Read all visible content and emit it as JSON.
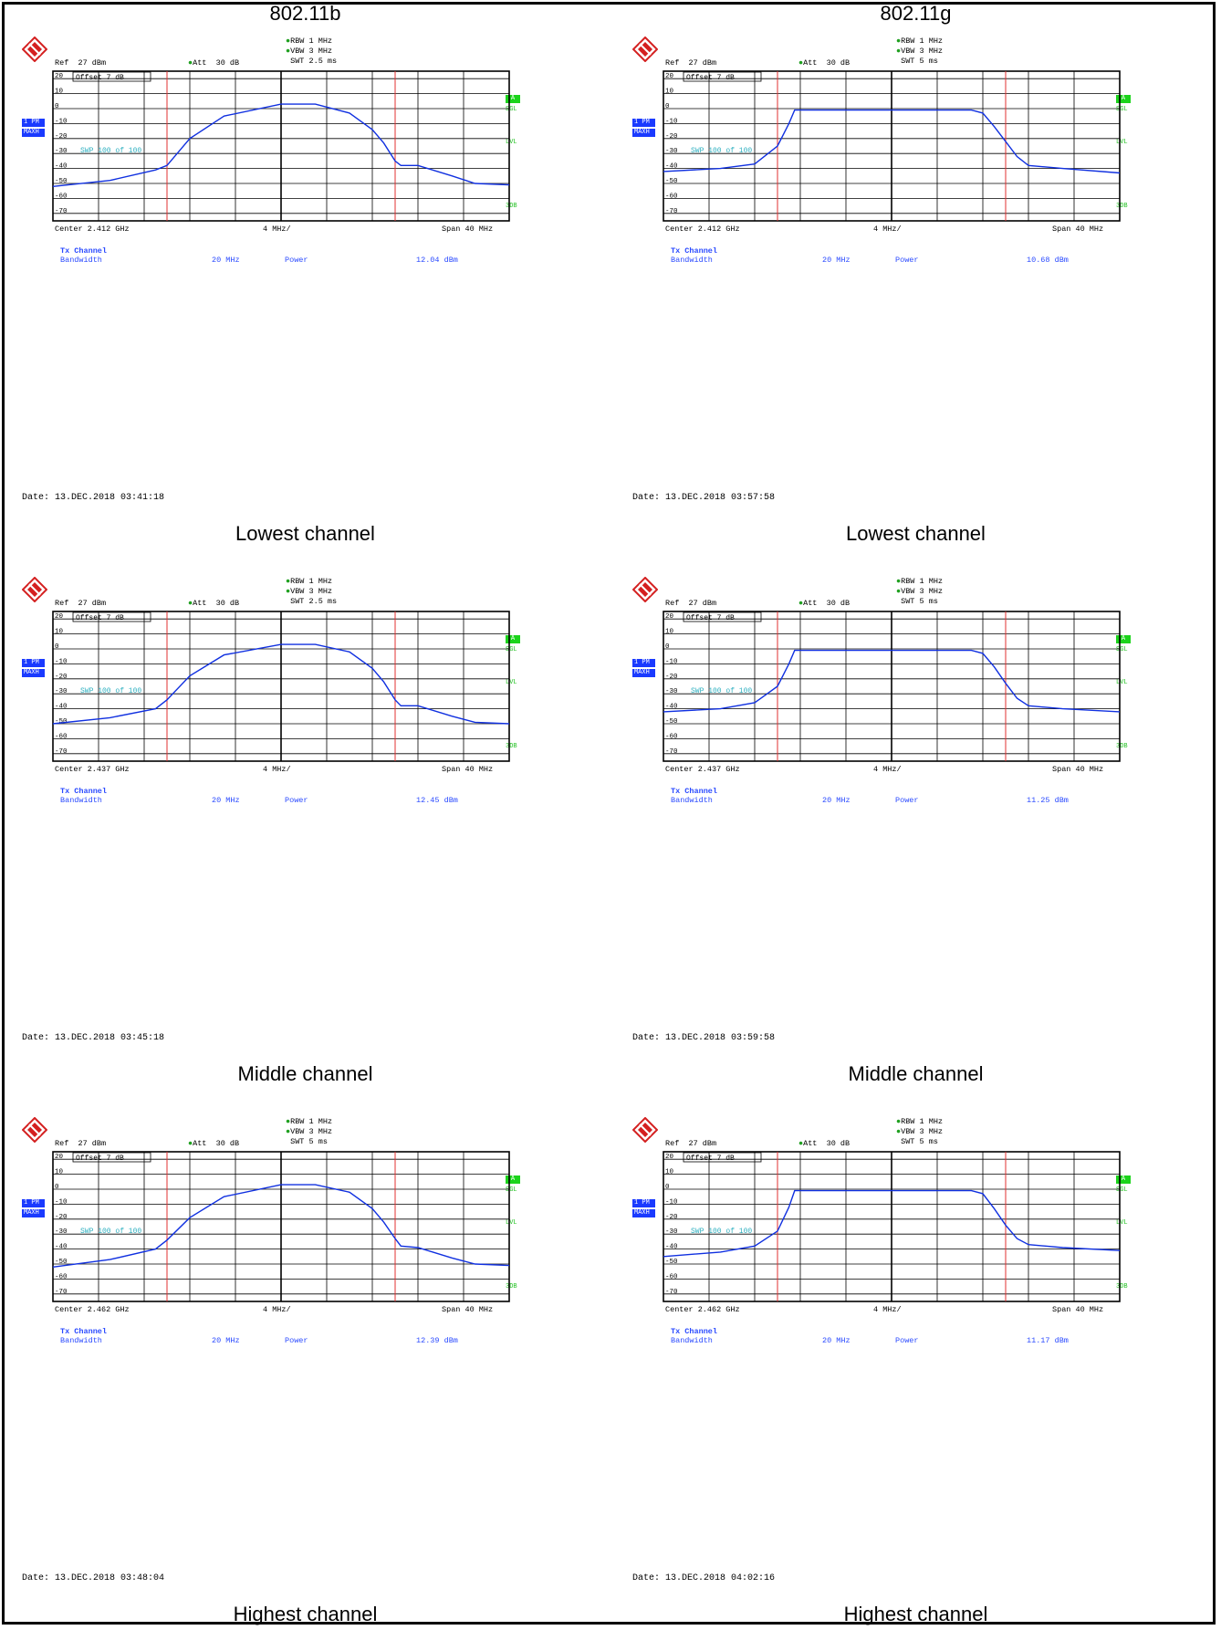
{
  "columns": [
    "802.11b",
    "802.11g"
  ],
  "header": {
    "ref": "Ref  27 dBm",
    "att": "Att  30 dB",
    "rbw": "RBW 1 MHz",
    "vbw": "VBW 3 MHz",
    "offset": "Offset  7 dB",
    "swp": "SWP  100 of  100",
    "y_ticks": [
      "20",
      "10",
      "0",
      "-10",
      "-20",
      "-30",
      "-40",
      "-50",
      "-60",
      "-70"
    ],
    "div": "4 MHz/",
    "span": "Span 40 MHz",
    "pm1": "1 PM",
    "maxh": "MAXH",
    "a": "A",
    "sgl": "SGL",
    "lvl": "LVL",
    "db": "3DB",
    "tx_channel": "Tx Channel",
    "bandwidth": "Bandwidth",
    "bw_value": "20 MHz",
    "power_label": "Power"
  },
  "panels": [
    {
      "std": "802.11b",
      "channel_label": "Lowest channel",
      "swt": "SWT 2.5 ms",
      "center": "Center 2.412 GHz",
      "power": "12.04 dBm",
      "date": "Date: 13.DEC.2018  03:41:18"
    },
    {
      "std": "802.11g",
      "channel_label": "Lowest channel",
      "swt": "SWT 5 ms",
      "center": "Center 2.412 GHz",
      "power": "10.68 dBm",
      "date": "Date: 13.DEC.2018  03:57:58"
    },
    {
      "std": "802.11b",
      "channel_label": "Middle channel",
      "swt": "SWT 2.5 ms",
      "center": "Center 2.437 GHz",
      "power": "12.45 dBm",
      "date": "Date: 13.DEC.2018  03:45:18"
    },
    {
      "std": "802.11g",
      "channel_label": "Middle channel",
      "swt": "SWT 5 ms",
      "center": "Center 2.437 GHz",
      "power": "11.25 dBm",
      "date": "Date: 13.DEC.2018  03:59:58"
    },
    {
      "std": "802.11b",
      "channel_label": "Highest channel",
      "swt": "SWT 5 ms",
      "center": "Center 2.462 GHz",
      "power": "12.39 dBm",
      "date": "Date: 13.DEC.2018  03:48:04"
    },
    {
      "std": "802.11g",
      "channel_label": "Highest channel",
      "swt": "SWT 5 ms",
      "center": "Center 2.462 GHz",
      "power": "11.17 dBm",
      "date": "Date: 13.DEC.2018  04:02:16"
    }
  ],
  "chart_data": [
    {
      "type": "line",
      "ylim": [
        -75,
        25
      ],
      "xlim": [
        -20,
        20
      ],
      "markers_x": [
        -10,
        10
      ],
      "series": [
        {
          "x": [
            -20,
            -15,
            -11,
            -10,
            -8,
            -5,
            0,
            3,
            6,
            8,
            9,
            10,
            10.5,
            12,
            15,
            17,
            20
          ],
          "values": [
            -52,
            -48,
            -41,
            -38,
            -20,
            -5,
            3,
            3,
            -3,
            -14,
            -23,
            -35,
            -38,
            -38,
            -45,
            -50,
            -51
          ]
        }
      ]
    },
    {
      "type": "line",
      "ylim": [
        -75,
        25
      ],
      "xlim": [
        -20,
        20
      ],
      "markers_x": [
        -10,
        10
      ],
      "series": [
        {
          "x": [
            -20,
            -15,
            -12,
            -10,
            -9,
            -8.5,
            -7,
            0,
            7,
            8,
            9,
            10,
            11,
            12,
            15,
            20
          ],
          "values": [
            -42,
            -40,
            -37,
            -25,
            -10,
            -1,
            -1,
            -1,
            -1,
            -3,
            -12,
            -22,
            -32,
            -38,
            -40,
            -43
          ]
        }
      ]
    },
    {
      "type": "line",
      "ylim": [
        -75,
        25
      ],
      "xlim": [
        -20,
        20
      ],
      "markers_x": [
        -10,
        10
      ],
      "series": [
        {
          "x": [
            -20,
            -15,
            -11,
            -10,
            -8,
            -5,
            0,
            3,
            6,
            8,
            9,
            10,
            10.5,
            12,
            15,
            17,
            20
          ],
          "values": [
            -50,
            -46,
            -40,
            -34,
            -18,
            -4,
            3,
            3,
            -2,
            -13,
            -22,
            -34,
            -38,
            -38,
            -45,
            -49,
            -50
          ]
        }
      ]
    },
    {
      "type": "line",
      "ylim": [
        -75,
        25
      ],
      "xlim": [
        -20,
        20
      ],
      "markers_x": [
        -10,
        10
      ],
      "series": [
        {
          "x": [
            -20,
            -15,
            -12,
            -10,
            -9,
            -8.5,
            -7,
            0,
            7,
            8,
            9,
            10,
            11,
            12,
            15,
            20
          ],
          "values": [
            -42,
            -40,
            -36,
            -25,
            -10,
            -1,
            -1,
            -1,
            -1,
            -3,
            -12,
            -23,
            -33,
            -38,
            -40,
            -42
          ]
        }
      ]
    },
    {
      "type": "line",
      "ylim": [
        -75,
        25
      ],
      "xlim": [
        -20,
        20
      ],
      "markers_x": [
        -10,
        10
      ],
      "series": [
        {
          "x": [
            -20,
            -15,
            -11,
            -10,
            -8,
            -5,
            0,
            3,
            6,
            8,
            9,
            10,
            10.5,
            12,
            15,
            17,
            20
          ],
          "values": [
            -52,
            -47,
            -40,
            -34,
            -19,
            -5,
            3,
            3,
            -2,
            -13,
            -22,
            -33,
            -38,
            -39,
            -46,
            -50,
            -51
          ]
        }
      ]
    },
    {
      "type": "line",
      "ylim": [
        -75,
        25
      ],
      "xlim": [
        -20,
        20
      ],
      "markers_x": [
        -10,
        10
      ],
      "series": [
        {
          "x": [
            -20,
            -15,
            -12,
            -10,
            -9,
            -8.5,
            -7,
            0,
            7,
            8,
            9,
            10,
            11,
            12,
            15,
            20
          ],
          "values": [
            -45,
            -42,
            -38,
            -28,
            -12,
            -1,
            -1,
            -1,
            -1,
            -3,
            -13,
            -24,
            -33,
            -37,
            -39,
            -41
          ]
        }
      ]
    }
  ]
}
